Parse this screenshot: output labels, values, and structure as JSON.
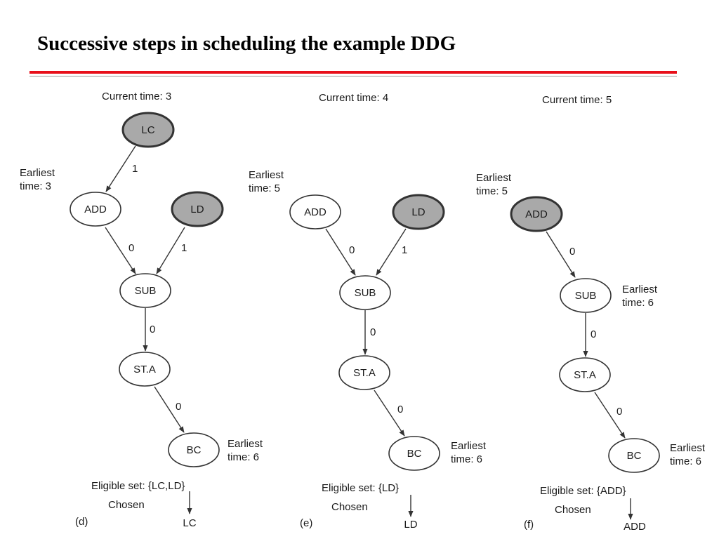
{
  "title": "Successive steps in scheduling the example DDG",
  "panels": [
    {
      "current_time": "Current time: 3",
      "nodes": [
        {
          "label": "LC",
          "highlight": true
        },
        {
          "label": "ADD",
          "highlight": false
        },
        {
          "label": "LD",
          "highlight": true
        },
        {
          "label": "SUB",
          "highlight": false
        },
        {
          "label": "ST.A",
          "highlight": false
        },
        {
          "label": "BC",
          "highlight": false
        }
      ],
      "edge_weights": [
        "1",
        "0",
        "1",
        "0",
        "0"
      ],
      "earliest_a": [
        "Earliest",
        "time: 3"
      ],
      "earliest_b": [
        "Earliest",
        "time: 6"
      ],
      "eligible": "Eligible set: {LC,LD}",
      "chosen_label": "Chosen",
      "chosen_value": "LC",
      "tag": "(d)"
    },
    {
      "current_time": "Current time: 4",
      "nodes": [
        {
          "label": "ADD",
          "highlight": false
        },
        {
          "label": "LD",
          "highlight": true
        },
        {
          "label": "SUB",
          "highlight": false
        },
        {
          "label": "ST.A",
          "highlight": false
        },
        {
          "label": "BC",
          "highlight": false
        }
      ],
      "edge_weights": [
        "0",
        "1",
        "0",
        "0"
      ],
      "earliest_a": [
        "Earliest",
        "time: 5"
      ],
      "earliest_b": [
        "Earliest",
        "time: 6"
      ],
      "eligible": "Eligible set: {LD}",
      "chosen_label": "Chosen",
      "chosen_value": "LD",
      "tag": "(e)"
    },
    {
      "current_time": "Current time: 5",
      "nodes": [
        {
          "label": "ADD",
          "highlight": true
        },
        {
          "label": "SUB",
          "highlight": false
        },
        {
          "label": "ST.A",
          "highlight": false
        },
        {
          "label": "BC",
          "highlight": false
        }
      ],
      "edge_weights": [
        "0",
        "0",
        "0"
      ],
      "earliest_a": [
        "Earliest",
        "time: 5"
      ],
      "earliest_sub": [
        "Earliest",
        "time: 6"
      ],
      "earliest_b": [
        "Earliest",
        "time: 6"
      ],
      "eligible": "Eligible set: {ADD}",
      "chosen_label": "Chosen",
      "chosen_value": "ADD",
      "tag": "(f)"
    }
  ]
}
